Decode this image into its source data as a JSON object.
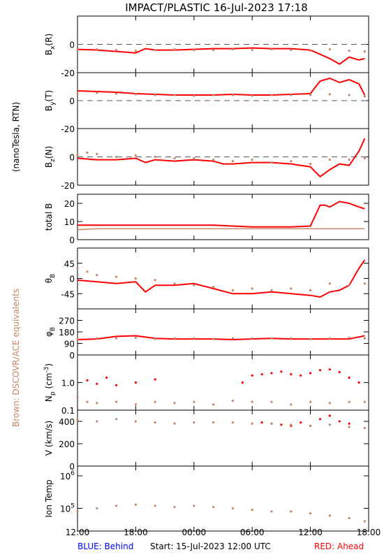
{
  "title": "IMPACT/PLASTIC   16-Jul-2023 17:18",
  "side_labels": {
    "units": "(nanoTesla, RTN)",
    "brown_note": "Brown: DSCOVR/ACE equivalents"
  },
  "footer": {
    "behind": "BLUE: Behind",
    "start": "Start: 15-Jul-2023 12:00 UTC",
    "ahead": "RED: Ahead"
  },
  "colors": {
    "ahead": "#ff0000",
    "ace": "#c4866a",
    "behind": "#0000ff",
    "frame": "#000000"
  },
  "x_axis": {
    "range_hours": [
      0,
      30
    ],
    "tick_hours": [
      0,
      6,
      12,
      18,
      24,
      30
    ],
    "tick_labels": [
      "12:00",
      "18:00",
      "00:00",
      "06:00",
      "12:00",
      "18:00"
    ]
  },
  "chart_data": [
    {
      "type": "line",
      "panel": "bx",
      "ylabel": "Bx(R)",
      "ylabel_main": "B",
      "ylabel_sub": "x",
      "ylabel_suffix": "(R)",
      "ylim": [
        -20,
        20
      ],
      "yticks": [
        0,
        -20
      ],
      "zero_dashed": true,
      "series": [
        {
          "name": "Ahead",
          "color": "ahead",
          "style": "line",
          "x": [
            0,
            2,
            4,
            6,
            7,
            8,
            10,
            12,
            14,
            16,
            18,
            20,
            22,
            24,
            25,
            26,
            27,
            28,
            29,
            29.6
          ],
          "y": [
            -3.5,
            -4,
            -5,
            -6,
            -3,
            -4,
            -4,
            -3.5,
            -3,
            -3,
            -2.5,
            -3,
            -3,
            -4,
            -7,
            -10,
            -14,
            -9,
            -11,
            -10
          ]
        },
        {
          "name": "ACE",
          "color": "ace",
          "style": "dots",
          "x": [
            0,
            2,
            4,
            6,
            8,
            10,
            12,
            14,
            16,
            18,
            20,
            22,
            24,
            26,
            28,
            29.6
          ],
          "y": [
            -4,
            -3.5,
            -4,
            -4.5,
            -4,
            -3.5,
            -4,
            -4,
            -3.5,
            -4,
            -3.5,
            -4,
            -4.5,
            -3.5,
            -4.5,
            -5
          ]
        }
      ]
    },
    {
      "type": "line",
      "panel": "by",
      "ylabel": "By(T)",
      "ylabel_main": "B",
      "ylabel_sub": "y",
      "ylabel_suffix": "(T)",
      "ylim": [
        -20,
        20
      ],
      "yticks": [
        0,
        -20
      ],
      "zero_dashed": true,
      "series": [
        {
          "name": "Ahead",
          "color": "ahead",
          "style": "line",
          "x": [
            0,
            2,
            4,
            6,
            8,
            10,
            12,
            14,
            16,
            18,
            20,
            22,
            24,
            25,
            26,
            27,
            28,
            29,
            29.6
          ],
          "y": [
            7,
            6.5,
            6,
            5,
            4.5,
            4,
            4,
            4,
            4.5,
            4,
            4,
            4.5,
            5,
            14,
            16,
            13,
            15,
            12,
            4
          ]
        },
        {
          "name": "ACE",
          "color": "ace",
          "style": "dots",
          "x": [
            0,
            2,
            4,
            6,
            8,
            10,
            12,
            14,
            16,
            18,
            20,
            22,
            24,
            26,
            28,
            29.6
          ],
          "y": [
            5,
            5.5,
            5,
            4.5,
            4,
            4,
            3.5,
            4,
            4,
            3.5,
            4,
            4,
            4,
            4.5,
            4,
            3
          ]
        }
      ]
    },
    {
      "type": "line",
      "panel": "bz",
      "ylabel": "Bz(N)",
      "ylabel_main": "B",
      "ylabel_sub": "z",
      "ylabel_suffix": "(N)",
      "ylim": [
        -20,
        20
      ],
      "yticks": [
        0,
        -20
      ],
      "zero_dashed": true,
      "series": [
        {
          "name": "Ahead",
          "color": "ahead",
          "style": "line",
          "x": [
            0,
            2,
            4,
            6,
            7,
            8,
            10,
            12,
            14,
            15,
            16,
            18,
            20,
            22,
            24,
            25,
            26,
            27,
            28,
            29,
            29.6
          ],
          "y": [
            -1,
            -2,
            -2,
            -1,
            -4,
            -2,
            -3,
            -2,
            -3,
            -5,
            -5,
            -4,
            -4,
            -5,
            -7,
            -14,
            -9,
            -5,
            -6,
            4,
            13
          ]
        },
        {
          "name": "ACE",
          "color": "ace",
          "style": "dots",
          "x": [
            0,
            1,
            2,
            4,
            6,
            8,
            10,
            12,
            14,
            16,
            18,
            20,
            22,
            24,
            26,
            28,
            29.6
          ],
          "y": [
            1,
            3,
            2,
            0,
            1,
            0,
            -1,
            -1,
            -2,
            -3,
            -2,
            -4,
            -3,
            -5,
            -2,
            -2,
            -1
          ]
        }
      ]
    },
    {
      "type": "line",
      "panel": "totalb",
      "ylabel": "total B",
      "ylim": [
        0,
        25
      ],
      "yticks": [
        20,
        10,
        0
      ],
      "zero_dashed": false,
      "series": [
        {
          "name": "Ahead",
          "color": "ahead",
          "style": "line",
          "x": [
            0,
            2,
            4,
            6,
            8,
            10,
            14,
            16,
            18,
            20,
            22,
            24,
            25,
            25.5,
            26,
            27,
            28,
            29,
            29.6
          ],
          "y": [
            8,
            8,
            8,
            8,
            8,
            8,
            8,
            7.5,
            7,
            7,
            7,
            7.5,
            19,
            19,
            18,
            21,
            20,
            18,
            17
          ]
        },
        {
          "name": "ACE",
          "color": "ace",
          "style": "line",
          "x": [
            0,
            2,
            4,
            6,
            8,
            10,
            12,
            14,
            16,
            18,
            20,
            22,
            24,
            26,
            28,
            29.6
          ],
          "y": [
            5.5,
            6,
            6,
            6,
            6,
            6,
            6,
            6,
            6,
            6,
            6,
            6,
            6,
            6,
            6,
            6
          ]
        }
      ]
    },
    {
      "type": "scatter",
      "panel": "theta",
      "ylabel": "θB",
      "ylabel_main": "θ",
      "ylabel_sub": "B",
      "ylim": [
        -90,
        90
      ],
      "yticks": [
        45,
        0,
        -45
      ],
      "zero_dashed": false,
      "series": [
        {
          "name": "Ahead",
          "color": "ahead",
          "style": "line",
          "x": [
            0,
            2,
            4,
            6,
            7,
            8,
            10,
            12,
            14,
            16,
            18,
            20,
            22,
            24,
            25,
            26,
            27,
            28,
            29,
            29.6
          ],
          "y": [
            -5,
            -10,
            -15,
            -10,
            -40,
            -20,
            -20,
            -15,
            -30,
            -45,
            -45,
            -40,
            -45,
            -50,
            -55,
            -40,
            -35,
            -20,
            30,
            55
          ]
        },
        {
          "name": "ACE",
          "color": "ace",
          "style": "dots",
          "x": [
            0,
            1,
            2,
            4,
            6,
            8,
            10,
            12,
            14,
            16,
            18,
            20,
            22,
            24,
            26,
            28,
            29.6
          ],
          "y": [
            30,
            20,
            10,
            5,
            0,
            -5,
            -15,
            -20,
            -25,
            -35,
            -30,
            -35,
            -30,
            -35,
            -15,
            -20,
            -15
          ]
        }
      ]
    },
    {
      "type": "line",
      "panel": "phi",
      "ylabel": "φB",
      "ylabel_main": "φ",
      "ylabel_sub": "B",
      "ylim": [
        0,
        360
      ],
      "yticks": [
        270,
        180,
        90,
        0
      ],
      "zero_dashed": false,
      "series": [
        {
          "name": "Ahead",
          "color": "ahead",
          "style": "line",
          "x": [
            0,
            2,
            4,
            6,
            8,
            10,
            12,
            14,
            16,
            18,
            20,
            22,
            24,
            26,
            28,
            29.6
          ],
          "y": [
            120,
            125,
            145,
            150,
            130,
            125,
            125,
            125,
            120,
            125,
            130,
            125,
            125,
            125,
            125,
            150
          ]
        },
        {
          "name": "ACE",
          "color": "ace",
          "style": "dots",
          "x": [
            0,
            2,
            4,
            6,
            8,
            10,
            12,
            14,
            16,
            18,
            20,
            22,
            24,
            26,
            28,
            29.6
          ],
          "y": [
            125,
            130,
            130,
            135,
            125,
            130,
            130,
            125,
            130,
            130,
            130,
            130,
            125,
            130,
            135,
            130
          ]
        }
      ]
    },
    {
      "type": "scatter",
      "panel": "np",
      "ylabel": "Np (cm^-3)",
      "ylabel_main": "N",
      "ylabel_sub": "p",
      "ylabel_suffix": " (cm",
      "ylabel_sup": "-3",
      "ylabel_close": ")",
      "yscale": "log",
      "ylim": [
        0.1,
        10
      ],
      "yticks": [
        1.0,
        0.1
      ],
      "ytick_labels": [
        "1.0",
        "0.1"
      ],
      "zero_dashed": false,
      "series": [
        {
          "name": "Ahead",
          "color": "ahead",
          "style": "dots",
          "x": [
            1,
            2,
            3,
            4,
            6,
            8,
            17,
            18,
            19,
            20,
            21,
            22,
            23,
            24,
            25,
            26,
            27,
            28,
            29
          ],
          "y": [
            1.2,
            0.9,
            1.5,
            0.8,
            1.0,
            1.3,
            1.0,
            1.8,
            2.0,
            2.2,
            2.5,
            2.0,
            1.8,
            2.2,
            2.8,
            3.0,
            2.4,
            1.5,
            1.0
          ]
        },
        {
          "name": "ACE",
          "color": "ace",
          "style": "dots",
          "x": [
            0,
            1,
            2,
            4,
            6,
            8,
            10,
            12,
            14,
            16,
            18,
            20,
            22,
            24,
            26,
            28,
            29.6
          ],
          "y": [
            0.3,
            0.2,
            0.18,
            0.2,
            0.16,
            0.2,
            0.18,
            0.2,
            0.16,
            0.22,
            0.2,
            0.2,
            0.16,
            0.2,
            0.18,
            0.2,
            0.2
          ]
        }
      ]
    },
    {
      "type": "scatter",
      "panel": "v",
      "ylabel": "V (km/s)",
      "ylim": [
        0,
        500
      ],
      "yticks": [
        400,
        200,
        0
      ],
      "zero_dashed": false,
      "series": [
        {
          "name": "Ahead",
          "color": "ahead",
          "style": "dots",
          "x": [
            19,
            20,
            21,
            22,
            23,
            24,
            25,
            26,
            27,
            28
          ],
          "y": [
            390,
            380,
            370,
            360,
            390,
            360,
            420,
            450,
            400,
            380
          ]
        },
        {
          "name": "ACE",
          "color": "ace",
          "style": "dots",
          "x": [
            0,
            2,
            4,
            6,
            8,
            10,
            12,
            14,
            16,
            18,
            20,
            22,
            24,
            26,
            28,
            29.6
          ],
          "y": [
            410,
            400,
            420,
            400,
            390,
            380,
            390,
            390,
            390,
            380,
            380,
            370,
            360,
            370,
            350,
            340
          ]
        }
      ]
    },
    {
      "type": "scatter",
      "panel": "temp",
      "ylabel": "Ion Temp",
      "yscale": "log",
      "ylim": [
        20000,
        2000000
      ],
      "yticks": [
        1000000,
        100000
      ],
      "ytick_labels": [
        "10^6",
        "10^5"
      ],
      "zero_dashed": false,
      "series": [
        {
          "name": "ACE",
          "color": "ace",
          "style": "dots",
          "x": [
            0,
            2,
            4,
            6,
            8,
            10,
            12,
            14,
            16,
            18,
            20,
            22,
            24,
            26,
            28,
            29.6
          ],
          "y": [
            80000,
            100000,
            120000,
            130000,
            120000,
            110000,
            120000,
            110000,
            100000,
            90000,
            80000,
            80000,
            70000,
            60000,
            50000,
            40000
          ]
        }
      ]
    }
  ]
}
